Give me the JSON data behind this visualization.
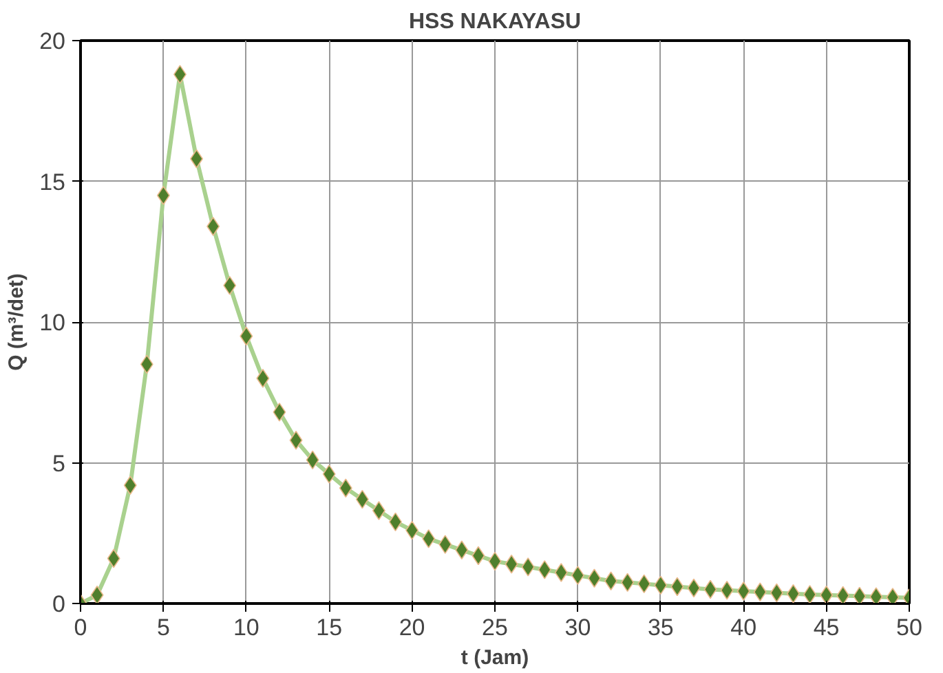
{
  "chart_data": {
    "type": "line",
    "title": "HSS NAKAYASU",
    "xlabel": "t (Jam)",
    "ylabel": "Q (m³/det)",
    "x": [
      0,
      1,
      2,
      3,
      4,
      5,
      6,
      7,
      8,
      9,
      10,
      11,
      12,
      13,
      14,
      15,
      16,
      17,
      18,
      19,
      20,
      21,
      22,
      23,
      24,
      25,
      26,
      27,
      28,
      29,
      30,
      31,
      32,
      33,
      34,
      35,
      36,
      37,
      38,
      39,
      40,
      41,
      42,
      43,
      44,
      45,
      46,
      47,
      48,
      49,
      50
    ],
    "series": [
      {
        "color": "#a9d18e",
        "values": [
          0,
          0.3,
          1.6,
          4.2,
          8.5,
          14.5,
          18.8,
          15.8,
          13.4,
          11.3,
          9.5,
          8.0,
          6.8,
          5.8,
          5.1,
          4.6,
          4.1,
          3.7,
          3.3,
          2.9,
          2.6,
          2.3,
          2.1,
          1.9,
          1.7,
          1.5,
          1.4,
          1.3,
          1.2,
          1.1,
          1.0,
          0.9,
          0.8,
          0.75,
          0.7,
          0.65,
          0.6,
          0.55,
          0.5,
          0.47,
          0.44,
          0.41,
          0.38,
          0.35,
          0.32,
          0.3,
          0.28,
          0.26,
          0.24,
          0.22,
          0.2
        ]
      }
    ],
    "marker": "diamond",
    "xlim": [
      0,
      50
    ],
    "ylim": [
      0,
      20
    ],
    "xticks": [
      0,
      5,
      10,
      15,
      20,
      25,
      30,
      35,
      40,
      45,
      50
    ],
    "yticks": [
      0,
      5,
      10,
      15,
      20
    ],
    "grid": true
  }
}
